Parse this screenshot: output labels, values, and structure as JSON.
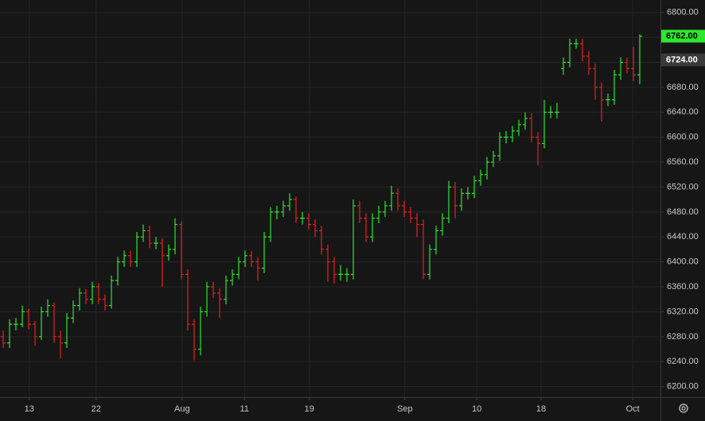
{
  "chart_data": {
    "type": "ohlc",
    "up_color": "#2ee62e",
    "down_color": "#e62020",
    "x": [
      0,
      1,
      2,
      3,
      4,
      5,
      6,
      7,
      8,
      9,
      10,
      11,
      12,
      13,
      14,
      15,
      16,
      17,
      18,
      19,
      20,
      21,
      22,
      23,
      24,
      25,
      26,
      27,
      28,
      29,
      30,
      31,
      32,
      33,
      34,
      35,
      36,
      37,
      38,
      39,
      40,
      41,
      42,
      43,
      44,
      45,
      46,
      47,
      48,
      49,
      50,
      51,
      52,
      53,
      54,
      55,
      56,
      57,
      58,
      59,
      60,
      61,
      62,
      63,
      64,
      65,
      66,
      67,
      68,
      69,
      70,
      71,
      72,
      73,
      74,
      75,
      76,
      77,
      78,
      79,
      80,
      81,
      82,
      83,
      84,
      85,
      86,
      87,
      88,
      89,
      90,
      91,
      92,
      93,
      94,
      95,
      96,
      97,
      98,
      99,
      100
    ],
    "open": [
      6280,
      6270,
      6300,
      6300,
      6320,
      6300,
      6280,
      6320,
      6330,
      6280,
      6270,
      6310,
      6330,
      6350,
      6340,
      6360,
      6340,
      6330,
      6370,
      6400,
      6410,
      6400,
      6440,
      6450,
      6430,
      6430,
      6410,
      6420,
      6460,
      6380,
      6300,
      6260,
      6320,
      6360,
      6350,
      6340,
      6370,
      6380,
      6400,
      6410,
      6400,
      6390,
      6440,
      6480,
      6480,
      6490,
      6500,
      6470,
      6470,
      6460,
      6450,
      6420,
      6400,
      6380,
      6380,
      6380,
      6490,
      6470,
      6440,
      6470,
      6480,
      6490,
      6510,
      6490,
      6480,
      6470,
      6460,
      6380,
      6420,
      6450,
      6470,
      6520,
      6490,
      6510,
      6510,
      6530,
      6540,
      6560,
      6570,
      6600,
      6600,
      6610,
      6620,
      6630,
      6600,
      6590,
      6640,
      6640,
      6710,
      6720,
      6750,
      6750,
      6730,
      6710,
      6680,
      6660,
      6660,
      6700,
      6720,
      6710,
      6700
    ],
    "high": [
      6290,
      6308,
      6310,
      6330,
      6325,
      6305,
      6328,
      6340,
      6335,
      6290,
      6318,
      6338,
      6358,
      6356,
      6368,
      6366,
      6348,
      6378,
      6408,
      6418,
      6418,
      6448,
      6460,
      6458,
      6440,
      6438,
      6428,
      6470,
      6465,
      6388,
      6308,
      6328,
      6368,
      6368,
      6358,
      6378,
      6388,
      6408,
      6418,
      6418,
      6408,
      6448,
      6488,
      6490,
      6498,
      6510,
      6505,
      6480,
      6478,
      6468,
      6458,
      6428,
      6408,
      6395,
      6390,
      6500,
      6498,
      6478,
      6478,
      6490,
      6498,
      6522,
      6518,
      6498,
      6488,
      6478,
      6468,
      6428,
      6458,
      6478,
      6530,
      6528,
      6518,
      6520,
      6538,
      6548,
      6568,
      6578,
      6608,
      6610,
      6618,
      6628,
      6640,
      6638,
      6608,
      6660,
      6650,
      6655,
      6728,
      6758,
      6758,
      6758,
      6738,
      6718,
      6688,
      6670,
      6708,
      6728,
      6728,
      6745,
      6765
    ],
    "low": [
      6262,
      6262,
      6290,
      6295,
      6292,
      6265,
      6275,
      6312,
      6270,
      6245,
      6262,
      6302,
      6322,
      6332,
      6332,
      6332,
      6322,
      6325,
      6362,
      6392,
      6392,
      6392,
      6432,
      6422,
      6420,
      6360,
      6402,
      6412,
      6372,
      6290,
      6242,
      6250,
      6312,
      6342,
      6310,
      6332,
      6362,
      6372,
      6392,
      6392,
      6370,
      6382,
      6432,
      6468,
      6472,
      6482,
      6462,
      6460,
      6452,
      6440,
      6412,
      6368,
      6365,
      6370,
      6368,
      6372,
      6462,
      6432,
      6432,
      6462,
      6472,
      6482,
      6482,
      6472,
      6462,
      6440,
      6372,
      6372,
      6412,
      6442,
      6462,
      6470,
      6482,
      6500,
      6502,
      6522,
      6532,
      6552,
      6562,
      6590,
      6592,
      6602,
      6612,
      6592,
      6555,
      6582,
      6630,
      6630,
      6700,
      6712,
      6742,
      6722,
      6700,
      6660,
      6625,
      6650,
      6652,
      6692,
      6702,
      6690,
      6685
    ],
    "close": [
      6270,
      6300,
      6300,
      6320,
      6300,
      6280,
      6320,
      6330,
      6280,
      6270,
      6310,
      6330,
      6350,
      6340,
      6360,
      6340,
      6330,
      6370,
      6400,
      6410,
      6400,
      6440,
      6450,
      6430,
      6430,
      6410,
      6420,
      6460,
      6380,
      6300,
      6260,
      6320,
      6360,
      6350,
      6340,
      6370,
      6380,
      6400,
      6410,
      6400,
      6390,
      6440,
      6480,
      6480,
      6490,
      6500,
      6470,
      6470,
      6460,
      6450,
      6420,
      6400,
      6380,
      6380,
      6380,
      6490,
      6470,
      6440,
      6470,
      6480,
      6490,
      6510,
      6490,
      6480,
      6470,
      6460,
      6380,
      6420,
      6450,
      6470,
      6520,
      6490,
      6510,
      6510,
      6530,
      6540,
      6560,
      6570,
      6600,
      6600,
      6610,
      6620,
      6630,
      6600,
      6590,
      6640,
      6640,
      6640,
      6720,
      6750,
      6750,
      6730,
      6710,
      6680,
      6660,
      6660,
      6700,
      6720,
      6710,
      6700,
      6762
    ],
    "xlim": [
      -0.5,
      103.25
    ],
    "xticks": [
      {
        "value": 4.1,
        "label": "13"
      },
      {
        "value": 14.6,
        "label": "22"
      },
      {
        "value": 28.1,
        "label": "Aug"
      },
      {
        "value": 37.9,
        "label": "11"
      },
      {
        "value": 48.1,
        "label": "19"
      },
      {
        "value": 63.1,
        "label": "Sep"
      },
      {
        "value": 74.4,
        "label": "10"
      },
      {
        "value": 84.5,
        "label": "18"
      },
      {
        "value": 98.9,
        "label": "Oct"
      }
    ],
    "ylim": [
      6183,
      6820
    ],
    "yticks": [
      {
        "value": 6200,
        "label": "6200.00"
      },
      {
        "value": 6240,
        "label": "6240.00"
      },
      {
        "value": 6280,
        "label": "6280.00"
      },
      {
        "value": 6320,
        "label": "6320.00"
      },
      {
        "value": 6360,
        "label": "6360.00"
      },
      {
        "value": 6400,
        "label": "6400.00"
      },
      {
        "value": 6440,
        "label": "6440.00"
      },
      {
        "value": 6480,
        "label": "6480.00"
      },
      {
        "value": 6520,
        "label": "6520.00"
      },
      {
        "value": 6560,
        "label": "6560.00"
      },
      {
        "value": 6600,
        "label": "6600.00"
      },
      {
        "value": 6640,
        "label": "6640.00"
      },
      {
        "value": 6680,
        "label": "6680.00"
      },
      {
        "value": 6720,
        "label": "6720.00"
      },
      {
        "value": 6760,
        "label": "6760.00"
      },
      {
        "value": 6800,
        "label": "6800.00"
      }
    ],
    "last_price": {
      "value": 6762,
      "label": "6762.00"
    },
    "ref_price": {
      "value": 6724,
      "label": "6724.00"
    },
    "grid": true
  }
}
